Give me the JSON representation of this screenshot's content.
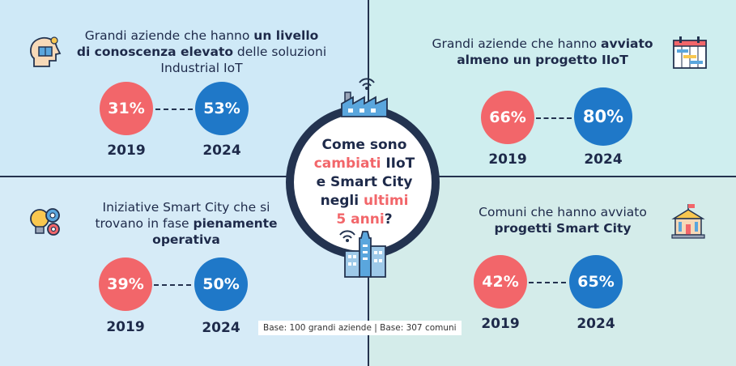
{
  "quadrants": {
    "top_left": {
      "title_parts": [
        "Grandi aziende che hanno ",
        "un livello",
        " di conoscenza elevato",
        " delle soluzioni Industrial IoT"
      ],
      "value_old": "31%",
      "value_new": "53%",
      "year_old": "2019",
      "year_new": "2024",
      "icon": "head-book-icon"
    },
    "top_right": {
      "title_parts": [
        "Grandi aziende che hanno ",
        "avviato",
        "almeno un progetto IIoT"
      ],
      "value_old": "66%",
      "value_new": "80%",
      "year_old": "2019",
      "year_new": "2024",
      "icon": "gantt-chart-icon"
    },
    "bottom_left": {
      "title_parts": [
        "Iniziative Smart City che si",
        "trovano in fase ",
        "pienamente",
        "operativa"
      ],
      "value_old": "39%",
      "value_new": "50%",
      "year_old": "2019",
      "year_new": "2024",
      "icon": "gears-bulb-icon"
    },
    "bottom_right": {
      "title_parts": [
        "Comuni che hanno avviato",
        "progetti Smart City"
      ],
      "value_old": "42%",
      "value_new": "65%",
      "year_old": "2019",
      "year_new": "2024",
      "icon": "town-hall-icon"
    }
  },
  "center": {
    "line1": "Come sono",
    "line2_accent": "cambiati",
    "line2_rest": " IIoT",
    "line3": "e Smart City",
    "line4_start": "negli ",
    "line4_accent": "ultimi",
    "line5_accent": "5 anni",
    "line5_rest": "?",
    "top_icon": "factory-wifi-icon",
    "bottom_icon": "skyscraper-wifi-icon"
  },
  "base_note": "Base: 100 grandi aziende | Base: 307 comuni",
  "colors": {
    "old_value": "#f2666a",
    "new_value": "#1f78c8",
    "dark": "#233350"
  }
}
